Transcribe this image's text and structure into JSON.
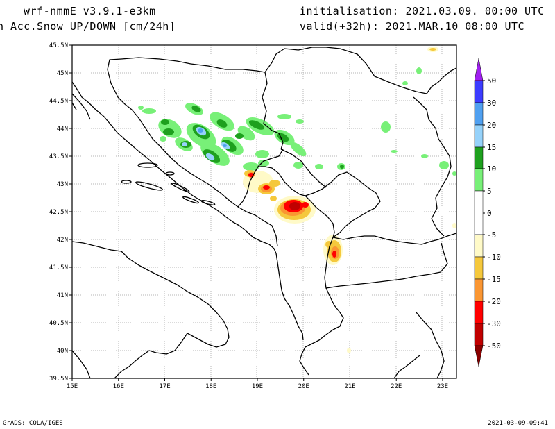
{
  "header": {
    "model": "wrf-nmmE_v3.9.1-e3km",
    "variable": "n Acc.Snow UP/DOWN [cm/24h]",
    "init": "initialisation: 2021.03.09.  00:00 UTC",
    "valid": "valid(+32h): 2021.MAR.10 08:00 UTC"
  },
  "footer": {
    "left": "GrADS: COLA/IGES",
    "right": "2021-03-09-09:41"
  },
  "map": {
    "lon_range": [
      15,
      23.3
    ],
    "lat_range": [
      39.5,
      45.5
    ],
    "lon_ticks": [
      "15E",
      "16E",
      "17E",
      "18E",
      "19E",
      "20E",
      "21E",
      "22E",
      "23E"
    ],
    "lat_ticks": [
      "39.5N",
      "40N",
      "40.5N",
      "41N",
      "41.5N",
      "42N",
      "42.5N",
      "43N",
      "43.5N",
      "44N",
      "44.5N",
      "45N",
      "45.5N"
    ]
  },
  "colorbar": {
    "labels": [
      "50",
      "30",
      "20",
      "15",
      "10",
      "5",
      "0",
      "-5",
      "-10",
      "-15",
      "-20",
      "-30",
      "-50"
    ],
    "colors": {
      "top_arrow": "#a020f0",
      "c30_50": "#3c3cff",
      "c20_30": "#50a0f0",
      "c15_20": "#96d2fa",
      "c10_15": "#1ea01e",
      "c5_10": "#78f078",
      "cneg5_5": "#ffffff",
      "cneg10_neg5": "#fffac8",
      "cneg15_neg10": "#f5c83c",
      "cneg20_neg15": "#fa9632",
      "cneg30_neg20": "#ff0000",
      "cneg50_neg30": "#c00000",
      "bottom_arrow": "#8b0000"
    }
  }
}
